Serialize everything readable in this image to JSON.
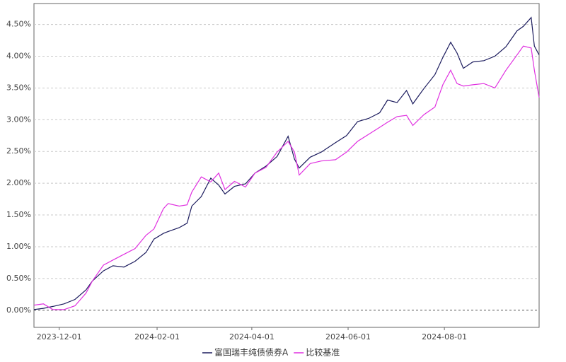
{
  "chart_data": {
    "type": "line",
    "x": [
      "2023-11-15",
      "2023-11-21",
      "2023-11-27",
      "2023-12-04",
      "2023-12-11",
      "2023-12-18",
      "2023-12-22",
      "2023-12-29",
      "2024-01-04",
      "2024-01-11",
      "2024-01-18",
      "2024-01-25",
      "2024-01-30",
      "2024-02-05",
      "2024-02-08",
      "2024-02-15",
      "2024-02-20",
      "2024-02-23",
      "2024-02-29",
      "2024-03-06",
      "2024-03-11",
      "2024-03-15",
      "2024-03-21",
      "2024-03-28",
      "2024-04-03",
      "2024-04-10",
      "2024-04-17",
      "2024-04-24",
      "2024-04-28",
      "2024-05-01",
      "2024-05-08",
      "2024-05-15",
      "2024-05-24",
      "2024-05-31",
      "2024-06-07",
      "2024-06-14",
      "2024-06-21",
      "2024-06-26",
      "2024-07-02",
      "2024-07-08",
      "2024-07-12",
      "2024-07-19",
      "2024-07-26",
      "2024-07-31",
      "2024-08-05",
      "2024-08-09",
      "2024-08-13",
      "2024-08-19",
      "2024-08-26",
      "2024-09-02",
      "2024-09-09",
      "2024-09-16",
      "2024-09-20",
      "2024-09-25",
      "2024-09-27",
      "2024-09-30"
    ],
    "series": [
      {
        "name": "富国瑞丰纯债债券A",
        "color": "#1c1c5e",
        "values": [
          0.01,
          0.03,
          0.06,
          0.1,
          0.17,
          0.32,
          0.46,
          0.62,
          0.7,
          0.68,
          0.77,
          0.91,
          1.12,
          1.21,
          1.24,
          1.3,
          1.37,
          1.64,
          1.79,
          2.08,
          1.97,
          1.83,
          1.95,
          1.99,
          2.16,
          2.27,
          2.42,
          2.74,
          2.38,
          2.24,
          2.41,
          2.49,
          2.64,
          2.75,
          2.97,
          3.02,
          3.11,
          3.31,
          3.27,
          3.46,
          3.25,
          3.49,
          3.71,
          3.98,
          4.22,
          4.05,
          3.81,
          3.91,
          3.93,
          4.0,
          4.15,
          4.4,
          4.47,
          4.61,
          4.16,
          4.02
        ]
      },
      {
        "name": "比较基准",
        "color": "#e030e0",
        "values": [
          0.08,
          0.1,
          0.01,
          0.01,
          0.07,
          0.27,
          0.46,
          0.71,
          0.79,
          0.88,
          0.97,
          1.18,
          1.28,
          1.6,
          1.68,
          1.64,
          1.66,
          1.86,
          2.1,
          2.02,
          2.16,
          1.9,
          2.03,
          1.94,
          2.16,
          2.25,
          2.49,
          2.66,
          2.49,
          2.13,
          2.31,
          2.35,
          2.37,
          2.49,
          2.66,
          2.77,
          2.88,
          2.96,
          3.05,
          3.07,
          2.91,
          3.08,
          3.2,
          3.55,
          3.78,
          3.57,
          3.53,
          3.55,
          3.57,
          3.5,
          3.78,
          4.02,
          4.16,
          4.13,
          3.78,
          3.35
        ]
      }
    ],
    "xlim": [
      "2023-11-15",
      "2024-09-30"
    ],
    "xticks": [
      "2023-12-01",
      "2024-02-01",
      "2024-04-01",
      "2024-06-01",
      "2024-08-01"
    ],
    "ylim": [
      -0.27,
      4.83
    ],
    "yticks": [
      {
        "value": 0,
        "label": "0.00%"
      },
      {
        "value": 0.5,
        "label": "0.50%"
      },
      {
        "value": 1,
        "label": "1.00%"
      },
      {
        "value": 1.5,
        "label": "1.50%"
      },
      {
        "value": 2,
        "label": "2.00%"
      },
      {
        "value": 2.5,
        "label": "2.50%"
      },
      {
        "value": 3,
        "label": "3.00%"
      },
      {
        "value": 3.5,
        "label": "3.50%"
      },
      {
        "value": 4,
        "label": "4.00%"
      },
      {
        "value": 4.5,
        "label": "4.50%"
      }
    ],
    "grid": true,
    "legend": "bottom"
  }
}
